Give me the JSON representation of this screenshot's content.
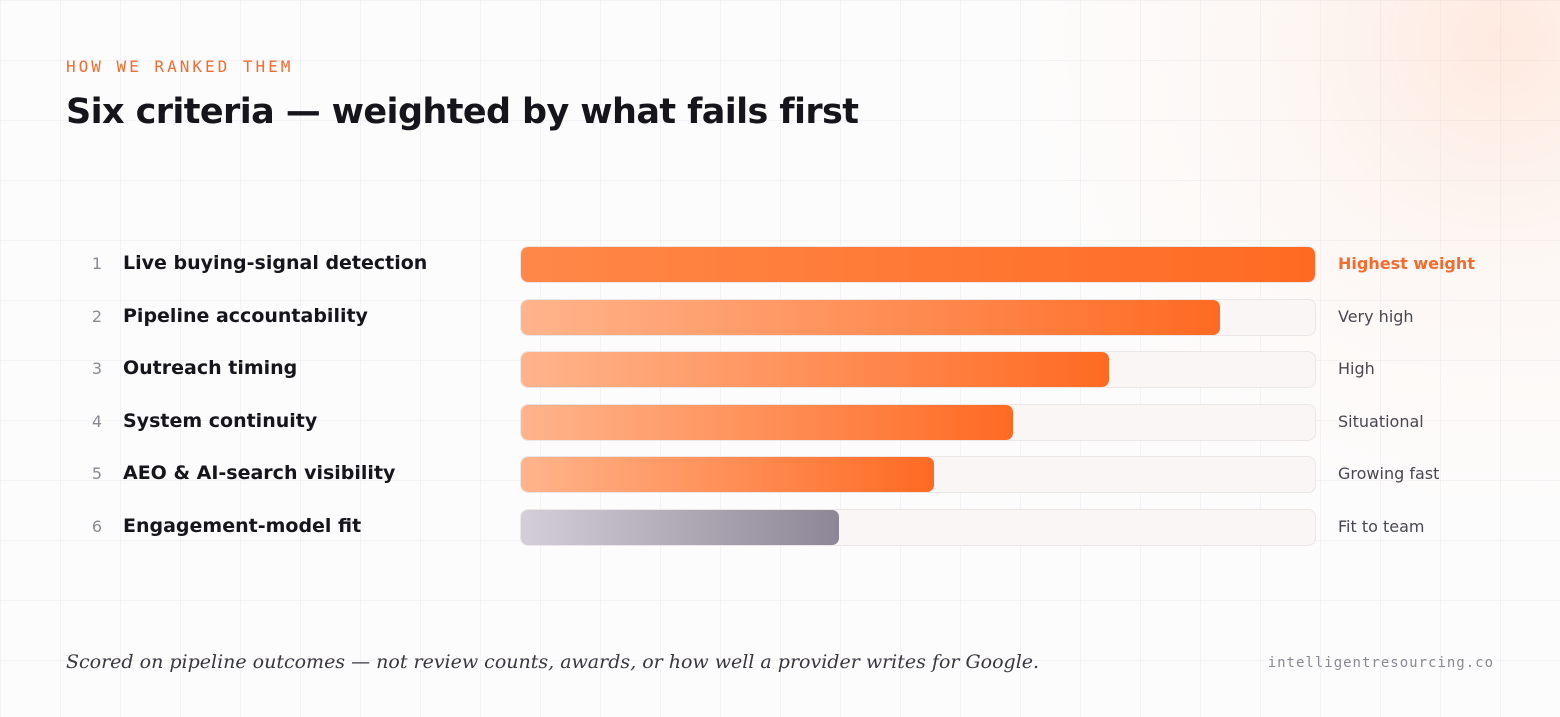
{
  "eyebrow": "HOW WE RANKED THEM",
  "title": "Six criteria — weighted by what fails first",
  "chart_data": {
    "type": "bar",
    "orientation": "horizontal",
    "categories": [
      "Live buying-signal detection",
      "Pipeline accountability",
      "Outreach timing",
      "System continuity",
      "AEO & AI-search visibility",
      "Engagement-model fit"
    ],
    "ranks": [
      "1",
      "2",
      "3",
      "4",
      "5",
      "6"
    ],
    "values": [
      1.0,
      0.88,
      0.74,
      0.62,
      0.52,
      0.4
    ],
    "value_labels": [
      "Highest weight",
      "Very high",
      "High",
      "Situational",
      "Growing fast",
      "Fit to team"
    ],
    "xlim": [
      0,
      1
    ],
    "grid": false,
    "colors": {
      "accent": "#ff6a22",
      "accent_light": "#ffb48c",
      "muted_start": "#d3cfd8",
      "muted_end": "#8d8696",
      "track": "#faf6f5"
    }
  },
  "footer": {
    "note": "Scored on pipeline outcomes — not review counts, awards, or how well a provider writes for Google.",
    "site": "intelligentresourcing.co"
  }
}
